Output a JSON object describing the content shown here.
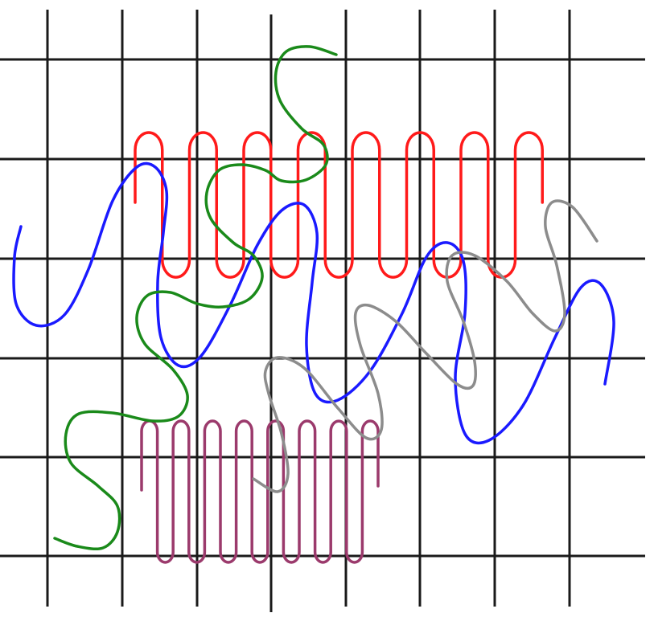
{
  "figure": {
    "grid": {
      "columns": 8,
      "rows": 6,
      "line_color": "#1a1a1a"
    },
    "curves": [
      {
        "id": "red-coil",
        "color": "#ff1a1a",
        "shape": "tight coil",
        "loops": 8
      },
      {
        "id": "purple-coil",
        "color": "#9b3a6c",
        "shape": "tight coil",
        "loops": 8
      },
      {
        "id": "blue-helix",
        "color": "#1a1aff",
        "shape": "loose helix"
      },
      {
        "id": "green-wave",
        "color": "#1a8a1a",
        "shape": "meandering wave"
      },
      {
        "id": "gray-helix",
        "color": "#8c8c8c",
        "shape": "loose helix"
      }
    ]
  }
}
